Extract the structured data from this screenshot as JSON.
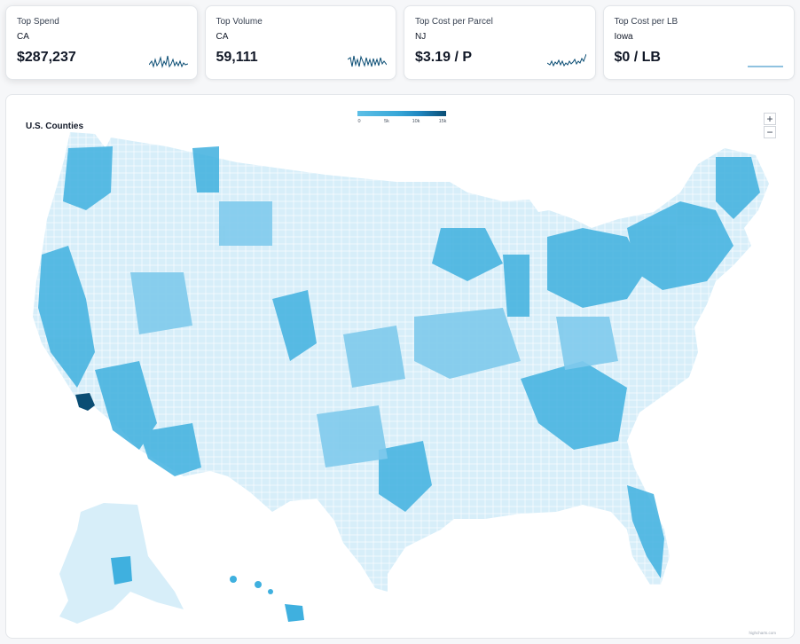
{
  "cards": [
    {
      "title": "Top Spend",
      "sub": "CA",
      "value": "$287,237"
    },
    {
      "title": "Top Volume",
      "sub": "CA",
      "value": "59,111"
    },
    {
      "title": "Top Cost per Parcel",
      "sub": "NJ",
      "value": "$3.19 / P"
    },
    {
      "title": "Top Cost per LB",
      "sub": "Iowa",
      "value": "$0 / LB"
    }
  ],
  "map": {
    "title": "U.S. Counties",
    "legend_ticks": [
      "0",
      "5k",
      "10k",
      "15k"
    ],
    "zoom_in": "+",
    "zoom_out": "−",
    "credit": "highcharts.com",
    "colors": {
      "light": "#d7eef9",
      "mid": "#7fcaec",
      "strong": "#3fb0df",
      "dark": "#0a4d74"
    }
  }
}
